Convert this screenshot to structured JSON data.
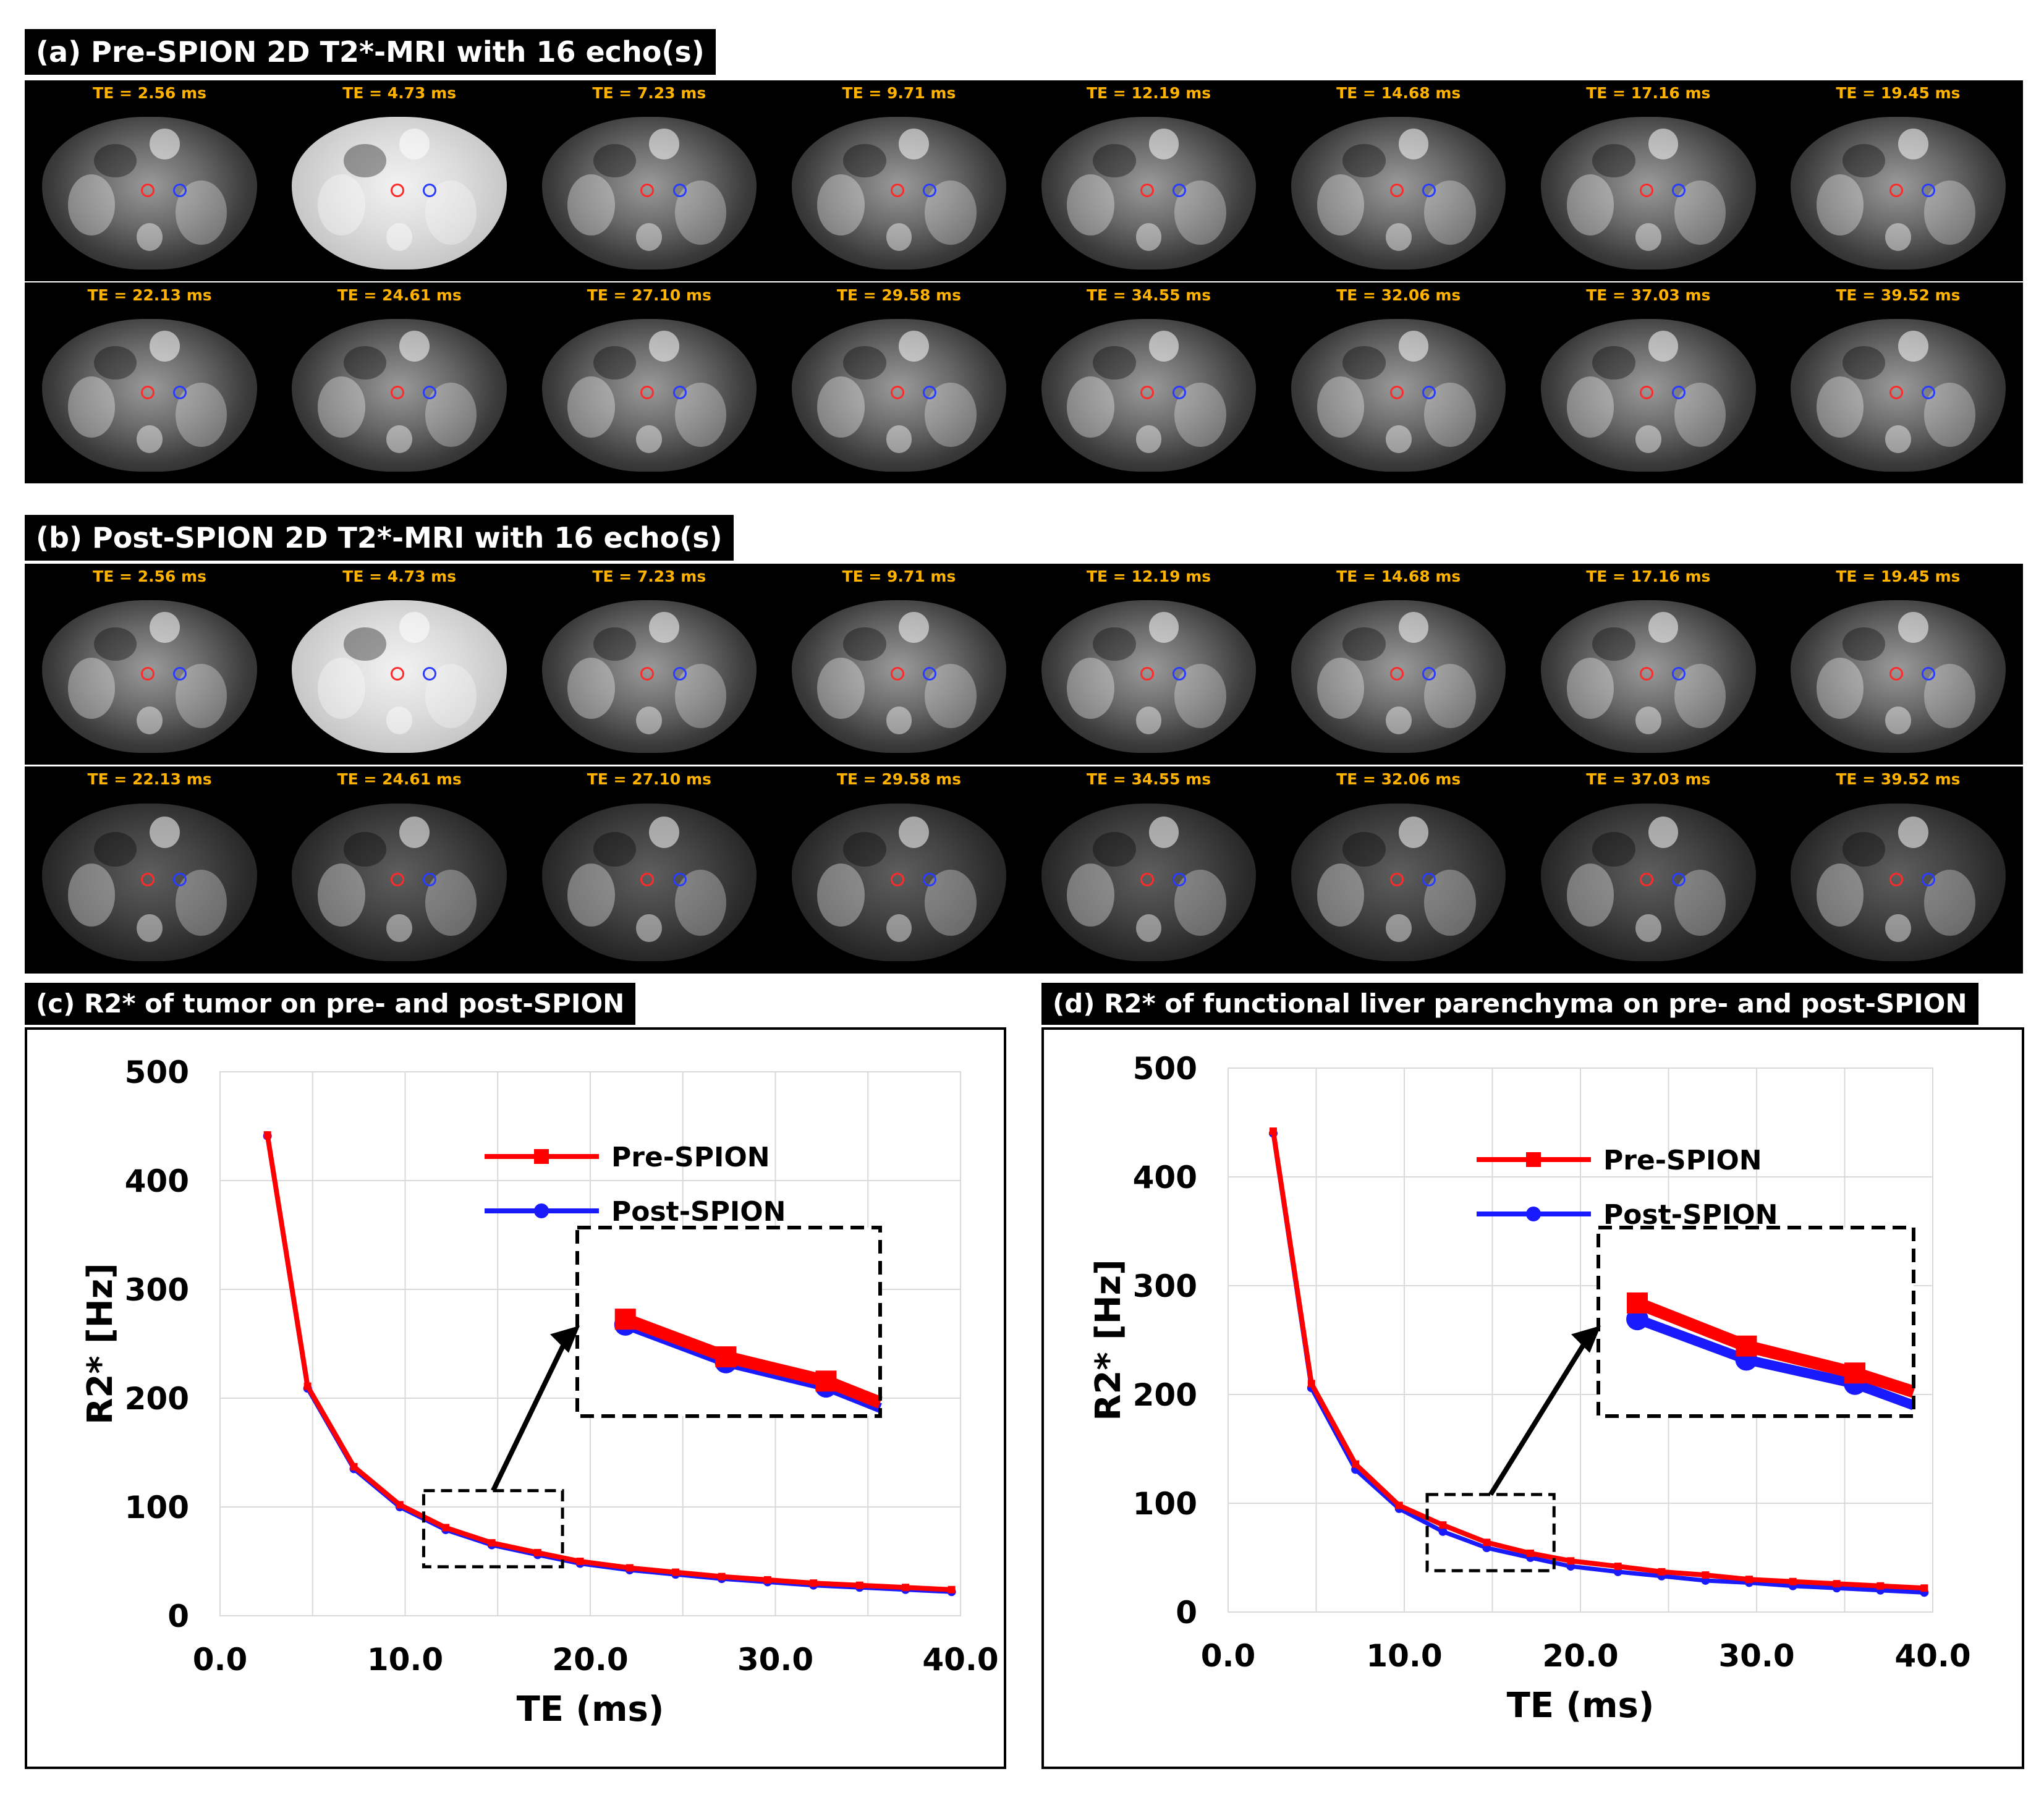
{
  "panel_a": {
    "title": "(a) Pre-SPION 2D T2*-MRI with 16 echo(s)",
    "row1": [
      "TE = 2.56 ms",
      "TE = 4.73 ms",
      "TE = 7.23 ms",
      "TE = 9.71 ms",
      "TE = 12.19 ms",
      "TE = 14.68 ms",
      "TE = 17.16 ms",
      "TE = 19.45 ms"
    ],
    "row2": [
      "TE = 22.13 ms",
      "TE = 24.61 ms",
      "TE = 27.10 ms",
      "TE = 29.58 ms",
      "TE = 34.55 ms",
      "TE = 32.06 ms",
      "TE = 37.03 ms",
      "TE = 39.52 ms"
    ]
  },
  "panel_b": {
    "title": "(b) Post-SPION 2D T2*-MRI with 16 echo(s)",
    "row1": [
      "TE = 2.56 ms",
      "TE = 4.73 ms",
      "TE = 7.23 ms",
      "TE = 9.71 ms",
      "TE = 12.19 ms",
      "TE = 14.68 ms",
      "TE = 17.16 ms",
      "TE = 19.45 ms"
    ],
    "row2": [
      "TE = 22.13 ms",
      "TE = 24.61 ms",
      "TE = 27.10 ms",
      "TE = 29.58 ms",
      "TE = 34.55 ms",
      "TE = 32.06 ms",
      "TE = 37.03 ms",
      "TE = 39.52 ms"
    ]
  },
  "panel_c": {
    "title": "(c) R2* of tumor on pre- and post-SPION"
  },
  "panel_d": {
    "title": "(d) R2* of functional liver parenchyma on pre- and post-SPION"
  },
  "colors": {
    "pre": "#ff0000",
    "post": "#1a1aff",
    "label": "#ffb300"
  },
  "chart_data": [
    {
      "type": "line",
      "title": "(c) R2* of tumor on pre- and post-SPION",
      "xlabel": "TE (ms)",
      "ylabel": "R2* [Hz]",
      "xlim": [
        0,
        40
      ],
      "ylim": [
        0,
        500
      ],
      "xticks": [
        "0.0",
        "10.0",
        "20.0",
        "30.0",
        "40.0"
      ],
      "yticks": [
        "0",
        "100",
        "200",
        "300",
        "400",
        "500"
      ],
      "grid": true,
      "legend": "top-right",
      "x": [
        2.56,
        4.73,
        7.23,
        9.71,
        12.19,
        14.68,
        17.16,
        19.45,
        22.13,
        24.61,
        27.1,
        29.58,
        32.06,
        34.55,
        37.03,
        39.52
      ],
      "series": [
        {
          "name": "Pre-SPION",
          "values": [
            442,
            211,
            137,
            102,
            81,
            67,
            58,
            50,
            44,
            40,
            36,
            33,
            30,
            28,
            26,
            24
          ]
        },
        {
          "name": "Post-SPION",
          "values": [
            441,
            209,
            135,
            100,
            79,
            65,
            56,
            48,
            42,
            38,
            34,
            31,
            28,
            26,
            24,
            22
          ]
        }
      ]
    },
    {
      "type": "line",
      "title": "(d) R2* of functional liver parenchyma on pre- and post-SPION",
      "xlabel": "TE (ms)",
      "ylabel": "R2* [Hz]",
      "xlim": [
        0,
        40
      ],
      "ylim": [
        0,
        500
      ],
      "xticks": [
        "0.0",
        "10.0",
        "20.0",
        "30.0",
        "40.0"
      ],
      "yticks": [
        "0",
        "100",
        "200",
        "300",
        "400",
        "500"
      ],
      "grid": true,
      "legend": "top-right",
      "x": [
        2.56,
        4.73,
        7.23,
        9.71,
        12.19,
        14.68,
        17.16,
        19.45,
        22.13,
        24.61,
        27.1,
        29.58,
        32.06,
        34.55,
        37.03,
        39.52
      ],
      "series": [
        {
          "name": "Pre-SPION",
          "values": [
            442,
            210,
            136,
            98,
            80,
            64,
            54,
            47,
            42,
            37,
            34,
            30,
            28,
            26,
            24,
            22
          ]
        },
        {
          "name": "Post-SPION",
          "values": [
            440,
            206,
            131,
            95,
            74,
            59,
            50,
            42,
            37,
            33,
            29,
            27,
            24,
            22,
            20,
            18
          ]
        }
      ]
    }
  ]
}
